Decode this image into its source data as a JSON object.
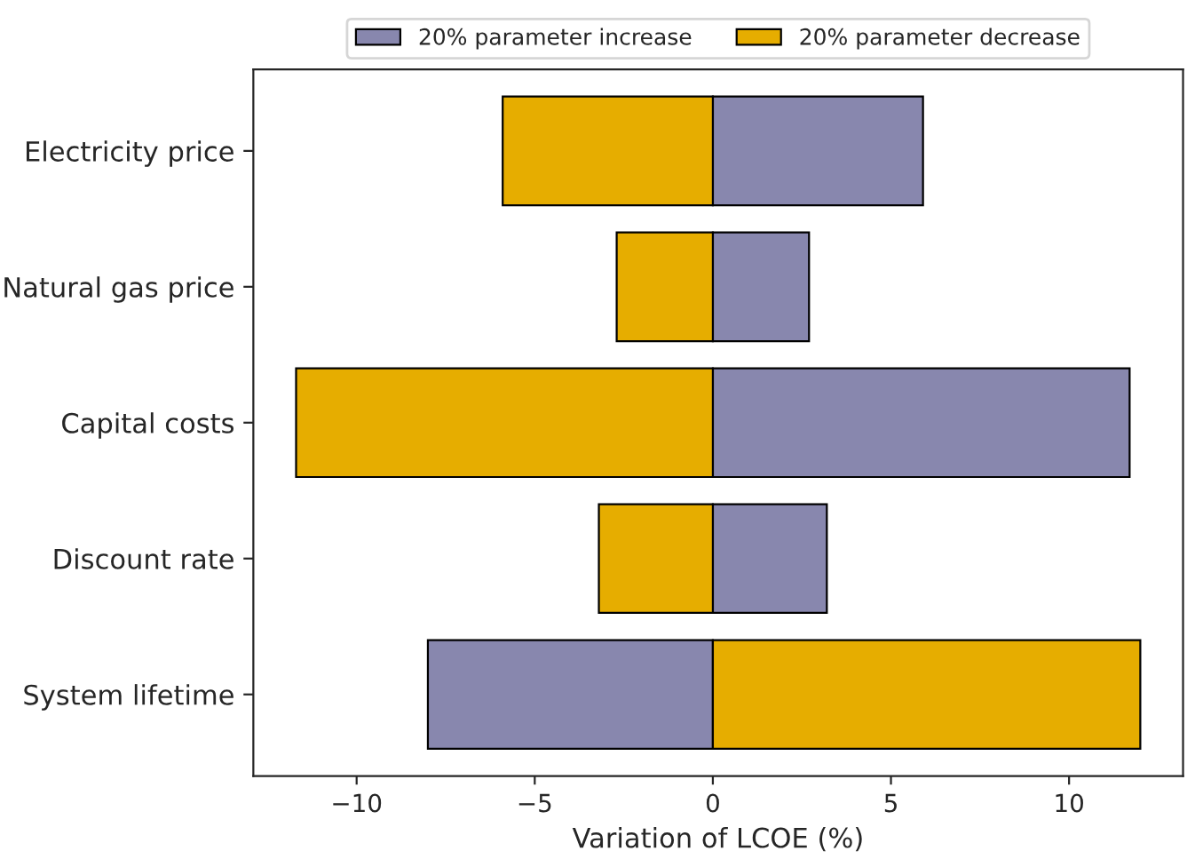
{
  "chart_data": {
    "type": "bar",
    "orientation": "horizontal",
    "stacked": true,
    "xlabel": "Variation of LCOE (%)",
    "categories": [
      "Electricity price",
      "Natural gas price",
      "Capital costs",
      "Discount rate",
      "System lifetime"
    ],
    "series": [
      {
        "name": "20% parameter increase",
        "color": "#8887ae",
        "values": [
          5.9,
          2.7,
          11.7,
          3.2,
          -8.0
        ]
      },
      {
        "name": "20% parameter decrease",
        "color": "#e6ad00",
        "values": [
          -5.9,
          -2.7,
          -11.7,
          -3.2,
          12.0
        ]
      }
    ],
    "xlim": [
      -12.9,
      13.2
    ],
    "xticks": [
      -10,
      -5,
      0,
      5,
      10
    ],
    "legend": "top",
    "grid": false
  }
}
